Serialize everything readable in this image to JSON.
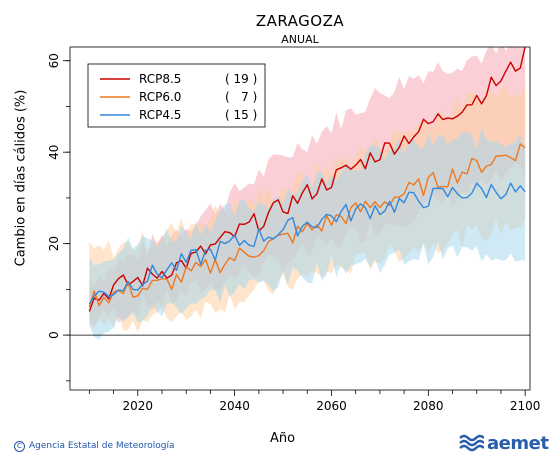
{
  "header": {
    "title": "ZARAGOZA",
    "subtitle": "ANUAL"
  },
  "footer": {
    "credit": "Agencia Estatal de Meteorología",
    "brand": "aemet"
  },
  "chart_data": {
    "type": "line",
    "title": "ZARAGOZA",
    "subtitle": "ANUAL",
    "xlabel": "Año",
    "ylabel": "Cambio en días cálidos (%)",
    "xlim": [
      2006,
      2101
    ],
    "ylim": [
      -12,
      63
    ],
    "xticks": [
      2020,
      2040,
      2060,
      2080,
      2100
    ],
    "yticks": [
      0,
      20,
      40,
      60
    ],
    "zero_line": true,
    "grid": false,
    "legend_position": "top-left",
    "series": [
      {
        "name": "RCP8.5",
        "count_label": "( 19 )",
        "color": "#cc0000",
        "band_color": "#f7a8b4",
        "anchors": [
          [
            2010,
            7
          ],
          [
            2015,
            10.5
          ],
          [
            2020,
            12
          ],
          [
            2025,
            14
          ],
          [
            2030,
            16
          ],
          [
            2035,
            19
          ],
          [
            2040,
            22
          ],
          [
            2045,
            25
          ],
          [
            2050,
            28
          ],
          [
            2055,
            31
          ],
          [
            2060,
            34
          ],
          [
            2065,
            37
          ],
          [
            2070,
            40
          ],
          [
            2075,
            43
          ],
          [
            2080,
            46
          ],
          [
            2085,
            49
          ],
          [
            2090,
            52
          ],
          [
            2095,
            56
          ],
          [
            2100,
            61
          ]
        ],
        "band_low": [
          [
            2010,
            3
          ],
          [
            2020,
            6
          ],
          [
            2030,
            9
          ],
          [
            2040,
            13
          ],
          [
            2050,
            16
          ],
          [
            2060,
            20
          ],
          [
            2070,
            24
          ],
          [
            2080,
            28
          ],
          [
            2090,
            32
          ],
          [
            2100,
            36
          ]
        ],
        "band_high": [
          [
            2010,
            12
          ],
          [
            2020,
            18
          ],
          [
            2030,
            24
          ],
          [
            2040,
            31
          ],
          [
            2050,
            39
          ],
          [
            2060,
            46
          ],
          [
            2070,
            53
          ],
          [
            2080,
            58
          ],
          [
            2090,
            61
          ],
          [
            2100,
            63
          ]
        ]
      },
      {
        "name": "RCP6.0",
        "count_label": "(   7 )",
        "color": "#ee7722",
        "band_color": "#fdd0a0",
        "anchors": [
          [
            2010,
            8
          ],
          [
            2015,
            9
          ],
          [
            2020,
            10
          ],
          [
            2025,
            11
          ],
          [
            2030,
            13
          ],
          [
            2035,
            15
          ],
          [
            2040,
            17
          ],
          [
            2045,
            19
          ],
          [
            2050,
            21
          ],
          [
            2055,
            23
          ],
          [
            2060,
            25
          ],
          [
            2065,
            27
          ],
          [
            2070,
            29
          ],
          [
            2075,
            31
          ],
          [
            2080,
            33
          ],
          [
            2085,
            35
          ],
          [
            2090,
            37
          ],
          [
            2095,
            39
          ],
          [
            2100,
            41
          ]
        ],
        "band_low": [
          [
            2010,
            2
          ],
          [
            2020,
            3
          ],
          [
            2030,
            5
          ],
          [
            2040,
            8
          ],
          [
            2050,
            11
          ],
          [
            2060,
            14
          ],
          [
            2070,
            17
          ],
          [
            2080,
            20
          ],
          [
            2090,
            22
          ],
          [
            2100,
            25
          ]
        ],
        "band_high": [
          [
            2010,
            18
          ],
          [
            2020,
            20
          ],
          [
            2030,
            24
          ],
          [
            2040,
            28
          ],
          [
            2050,
            32
          ],
          [
            2060,
            37
          ],
          [
            2070,
            42
          ],
          [
            2080,
            47
          ],
          [
            2090,
            52
          ],
          [
            2100,
            55
          ]
        ]
      },
      {
        "name": "RCP4.5",
        "count_label": "( 15 )",
        "color": "#3388dd",
        "band_color": "#a8d8ec",
        "anchors": [
          [
            2010,
            8
          ],
          [
            2015,
            10
          ],
          [
            2020,
            12
          ],
          [
            2025,
            14
          ],
          [
            2030,
            16
          ],
          [
            2035,
            18
          ],
          [
            2040,
            20
          ],
          [
            2045,
            21.5
          ],
          [
            2050,
            23
          ],
          [
            2055,
            24.5
          ],
          [
            2060,
            26
          ],
          [
            2065,
            27
          ],
          [
            2070,
            28
          ],
          [
            2075,
            29
          ],
          [
            2080,
            30
          ],
          [
            2085,
            31
          ],
          [
            2090,
            31.5
          ],
          [
            2095,
            32
          ],
          [
            2100,
            31
          ]
        ],
        "band_low": [
          [
            2010,
            0
          ],
          [
            2020,
            4
          ],
          [
            2030,
            7
          ],
          [
            2040,
            10
          ],
          [
            2050,
            12
          ],
          [
            2060,
            15
          ],
          [
            2070,
            16
          ],
          [
            2080,
            18
          ],
          [
            2090,
            18
          ],
          [
            2100,
            18
          ]
        ],
        "band_high": [
          [
            2010,
            17
          ],
          [
            2020,
            20
          ],
          [
            2030,
            23
          ],
          [
            2040,
            27
          ],
          [
            2050,
            31
          ],
          [
            2060,
            36
          ],
          [
            2070,
            40
          ],
          [
            2080,
            42
          ],
          [
            2090,
            43
          ],
          [
            2100,
            43
          ]
        ]
      }
    ]
  }
}
